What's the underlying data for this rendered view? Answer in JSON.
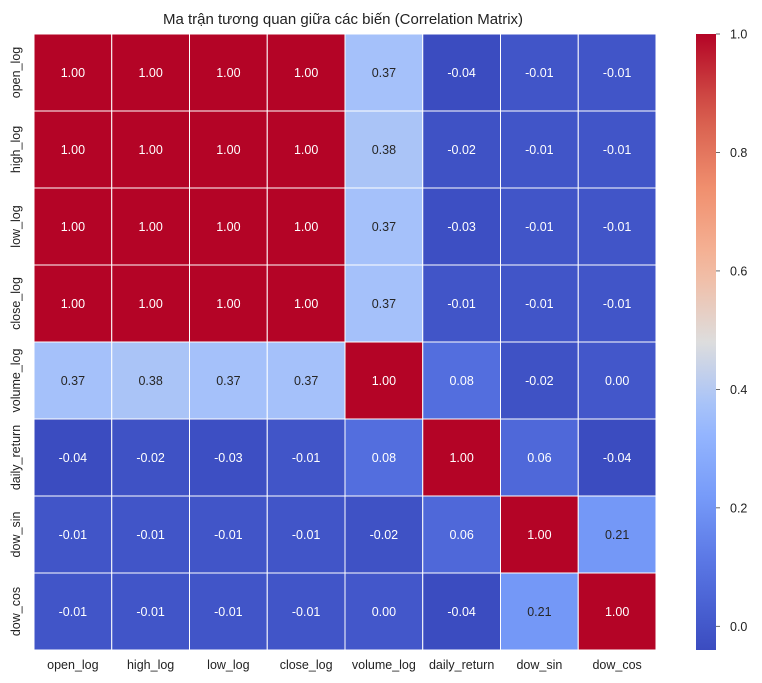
{
  "chart_data": {
    "type": "heatmap",
    "title": "Ma trận tương quan giữa các biến (Correlation Matrix)",
    "variables": [
      "open_log",
      "high_log",
      "low_log",
      "close_log",
      "volume_log",
      "daily_return",
      "dow_sin",
      "dow_cos"
    ],
    "values": [
      [
        1.0,
        1.0,
        1.0,
        1.0,
        0.37,
        -0.04,
        -0.01,
        -0.01
      ],
      [
        1.0,
        1.0,
        1.0,
        1.0,
        0.38,
        -0.02,
        -0.01,
        -0.01
      ],
      [
        1.0,
        1.0,
        1.0,
        1.0,
        0.37,
        -0.03,
        -0.01,
        -0.01
      ],
      [
        1.0,
        1.0,
        1.0,
        1.0,
        0.37,
        -0.01,
        -0.01,
        -0.01
      ],
      [
        0.37,
        0.38,
        0.37,
        0.37,
        1.0,
        0.08,
        -0.02,
        0.0
      ],
      [
        -0.04,
        -0.02,
        -0.03,
        -0.01,
        0.08,
        1.0,
        0.06,
        -0.04
      ],
      [
        -0.01,
        -0.01,
        -0.01,
        -0.01,
        -0.02,
        0.06,
        1.0,
        0.21
      ],
      [
        -0.01,
        -0.01,
        -0.01,
        -0.01,
        0.0,
        -0.04,
        0.21,
        1.0
      ]
    ],
    "value_format": "0.00",
    "colormap": "coolwarm",
    "colorbar": {
      "range": [
        -0.04,
        1.0
      ],
      "ticks": [
        0.0,
        0.2,
        0.4,
        0.6,
        0.8,
        1.0
      ],
      "tick_labels": [
        "0.0",
        "0.2",
        "0.4",
        "0.6",
        "0.8",
        "1.0"
      ]
    },
    "xlabel": "",
    "ylabel": ""
  }
}
